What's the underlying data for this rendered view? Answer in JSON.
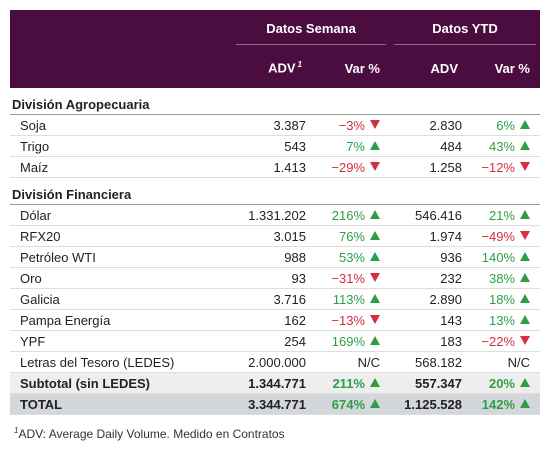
{
  "header": {
    "groups": [
      "Datos Semana",
      "Datos YTD"
    ],
    "columns": [
      "ADV",
      "Var %",
      "ADV",
      "Var %"
    ],
    "note_marker": "1"
  },
  "sections": [
    {
      "title": "División Agropecuaria",
      "rows": [
        [
          "Soja",
          "3.387",
          "−3%",
          "2.830",
          "6%"
        ],
        [
          "Trigo",
          "543",
          "7%",
          "484",
          "43%"
        ],
        [
          "Maíz",
          "1.413",
          "−29%",
          "1.258",
          "−12%"
        ]
      ]
    },
    {
      "title": "División Financiera",
      "rows": [
        [
          "Dólar",
          "1.331.202",
          "216%",
          "546.416",
          "21%"
        ],
        [
          "RFX20",
          "3.015",
          "76%",
          "1.974",
          "−49%"
        ],
        [
          "Petróleo WTI",
          "988",
          "53%",
          "936",
          "140%"
        ],
        [
          "Oro",
          "93",
          "−31%",
          "232",
          "38%"
        ],
        [
          "Galicia",
          "3.716",
          "113%",
          "2.890",
          "18%"
        ],
        [
          "Pampa Energía",
          "162",
          "−13%",
          "143",
          "13%"
        ],
        [
          "YPF",
          "254",
          "169%",
          "183",
          "−22%"
        ],
        [
          "Letras del Tesoro (LEDES)",
          "2.000.000",
          "N/C",
          "568.182",
          "N/C"
        ]
      ]
    }
  ],
  "subtotal": [
    "Subtotal (sin LEDES)",
    "1.344.771",
    "211%",
    "557.347",
    "20%"
  ],
  "total": [
    "TOTAL",
    "3.344.771",
    "674%",
    "1.125.528",
    "142%"
  ],
  "footnote": {
    "marker": "1",
    "text": "ADV: Average Daily Volume. Medido en Contratos"
  }
}
